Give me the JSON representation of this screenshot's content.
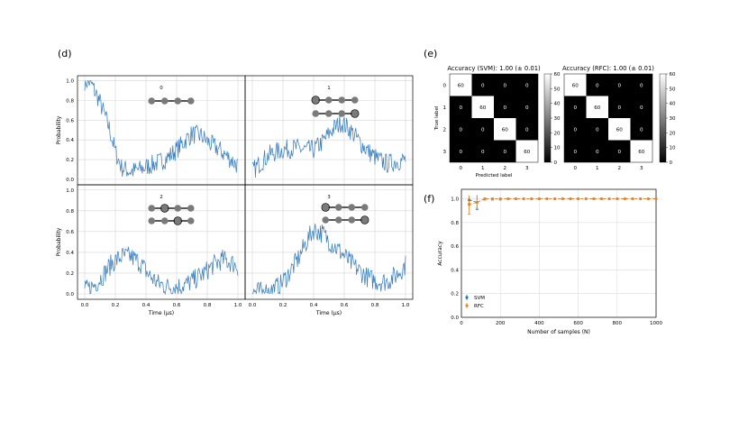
{
  "panels": {
    "d": "(d)",
    "e": "(e)",
    "f": "(f)"
  },
  "chart_data": [
    {
      "type": "line",
      "panel": "(d)",
      "xlabel": "Time (μs)",
      "ylabel": "Probability",
      "xlim": [
        0,
        1
      ],
      "ylim": [
        0,
        1.05
      ],
      "xticks": [
        "0.0",
        "0.2",
        "0.4",
        "0.6",
        "0.8",
        "1.0"
      ],
      "yticks": [
        "0.0",
        "0.2",
        "0.4",
        "0.6",
        "0.8",
        "1.0"
      ],
      "grid": true,
      "color": "#3a7fc1",
      "subplots": [
        {
          "label": "0",
          "envelope": {
            "x": [
              0,
              0.04,
              0.1,
              0.16,
              0.2,
              0.24,
              0.3,
              0.36,
              0.42,
              0.48,
              0.54,
              0.6,
              0.66,
              0.7,
              0.76,
              0.82,
              0.88,
              0.94,
              1.0
            ],
            "y": [
              1.0,
              0.98,
              0.78,
              0.52,
              0.28,
              0.12,
              0.08,
              0.1,
              0.14,
              0.17,
              0.22,
              0.3,
              0.4,
              0.46,
              0.44,
              0.36,
              0.3,
              0.22,
              0.14
            ]
          }
        },
        {
          "label": "1",
          "envelope": {
            "x": [
              0,
              0.06,
              0.12,
              0.2,
              0.28,
              0.34,
              0.4,
              0.46,
              0.52,
              0.58,
              0.64,
              0.7,
              0.76,
              0.82,
              0.88,
              0.94,
              1.0
            ],
            "y": [
              0.08,
              0.18,
              0.26,
              0.3,
              0.32,
              0.3,
              0.3,
              0.38,
              0.5,
              0.58,
              0.5,
              0.38,
              0.28,
              0.2,
              0.16,
              0.18,
              0.2
            ]
          }
        },
        {
          "label": "2",
          "envelope": {
            "x": [
              0,
              0.06,
              0.12,
              0.18,
              0.24,
              0.3,
              0.36,
              0.42,
              0.48,
              0.54,
              0.6,
              0.66,
              0.72,
              0.78,
              0.84,
              0.9,
              0.96,
              1.0
            ],
            "y": [
              0.03,
              0.08,
              0.18,
              0.3,
              0.36,
              0.36,
              0.3,
              0.18,
              0.1,
              0.07,
              0.07,
              0.09,
              0.14,
              0.2,
              0.28,
              0.33,
              0.3,
              0.26
            ]
          }
        },
        {
          "label": "3",
          "envelope": {
            "x": [
              0,
              0.06,
              0.12,
              0.18,
              0.24,
              0.3,
              0.36,
              0.4,
              0.46,
              0.52,
              0.58,
              0.64,
              0.7,
              0.76,
              0.82,
              0.88,
              0.94,
              1.0
            ],
            "y": [
              0.02,
              0.02,
              0.03,
              0.08,
              0.2,
              0.34,
              0.52,
              0.62,
              0.58,
              0.48,
              0.4,
              0.3,
              0.22,
              0.15,
              0.12,
              0.12,
              0.18,
              0.28
            ]
          }
        }
      ]
    },
    {
      "type": "heatmap",
      "panel": "(e)",
      "title": "Accuracy (SVM): 1.00 (± 0.01)",
      "xlabel": "Predicted label",
      "ylabel": "True label",
      "labels": [
        "0",
        "1",
        "2",
        "3"
      ],
      "matrix": [
        [
          60,
          0,
          0,
          0
        ],
        [
          0,
          60,
          0,
          0
        ],
        [
          0,
          0,
          60,
          0
        ],
        [
          0,
          0,
          0,
          60
        ]
      ],
      "colorbar_ticks": [
        "0",
        "10",
        "20",
        "30",
        "40",
        "50",
        "60"
      ],
      "colorbar_range": [
        0,
        60
      ]
    },
    {
      "type": "heatmap",
      "panel": "(e)",
      "title": "Accuracy (RFC): 1.00 (± 0.01)",
      "xlabel": "",
      "ylabel": "",
      "labels": [
        "0",
        "1",
        "2",
        "3"
      ],
      "matrix": [
        [
          60,
          0,
          0,
          0
        ],
        [
          0,
          60,
          0,
          0
        ],
        [
          0,
          0,
          60,
          0
        ],
        [
          0,
          0,
          0,
          60
        ]
      ],
      "colorbar_ticks": [
        "0",
        "10",
        "20",
        "30",
        "40",
        "50",
        "60"
      ],
      "colorbar_range": [
        0,
        60
      ]
    },
    {
      "type": "scatter",
      "panel": "(f)",
      "xlabel": "Number of samples (N)",
      "ylabel": "Accuracy",
      "xlim": [
        0,
        1000
      ],
      "ylim": [
        0,
        1.08
      ],
      "xticks": [
        "0",
        "200",
        "400",
        "600",
        "800",
        "1000"
      ],
      "yticks": [
        "0.0",
        "0.2",
        "0.4",
        "0.6",
        "0.8",
        "1.0"
      ],
      "grid": true,
      "legend": "lower-left",
      "series": [
        {
          "name": "SVM",
          "color": "#1f77b4",
          "x": [
            40,
            80,
            120,
            160,
            200,
            240,
            280,
            320,
            360,
            400,
            440,
            480,
            520,
            560,
            600,
            640,
            680,
            720,
            760,
            800,
            840,
            880,
            920,
            960,
            1000
          ],
          "y": [
            0.99,
            0.97,
            1,
            1,
            1,
            1,
            1,
            1,
            1,
            1,
            1,
            1,
            1,
            1,
            1,
            1,
            1,
            1,
            1,
            1,
            1,
            1,
            1,
            1,
            1
          ],
          "err": [
            0.03,
            0.06,
            0.01,
            0.01,
            0.01,
            0,
            0,
            0,
            0,
            0,
            0,
            0,
            0,
            0,
            0,
            0,
            0,
            0,
            0,
            0,
            0,
            0,
            0,
            0,
            0
          ]
        },
        {
          "name": "RFC",
          "color": "#ff7f0e",
          "x": [
            40,
            80,
            120,
            160,
            200,
            240,
            280,
            320,
            360,
            400,
            440,
            480,
            520,
            560,
            600,
            640,
            680,
            720,
            760,
            800,
            840,
            880,
            920,
            960,
            1000
          ],
          "y": [
            0.95,
            0.97,
            1,
            1,
            1,
            1,
            1,
            1,
            1,
            1,
            1,
            1,
            1,
            1,
            1,
            1,
            1,
            1,
            1,
            1,
            1,
            1,
            1,
            1,
            1
          ],
          "err": [
            0.08,
            0.05,
            0.01,
            0.01,
            0,
            0,
            0,
            0,
            0,
            0,
            0,
            0,
            0,
            0,
            0,
            0,
            0,
            0,
            0,
            0,
            0,
            0,
            0,
            0,
            0
          ]
        }
      ]
    }
  ]
}
